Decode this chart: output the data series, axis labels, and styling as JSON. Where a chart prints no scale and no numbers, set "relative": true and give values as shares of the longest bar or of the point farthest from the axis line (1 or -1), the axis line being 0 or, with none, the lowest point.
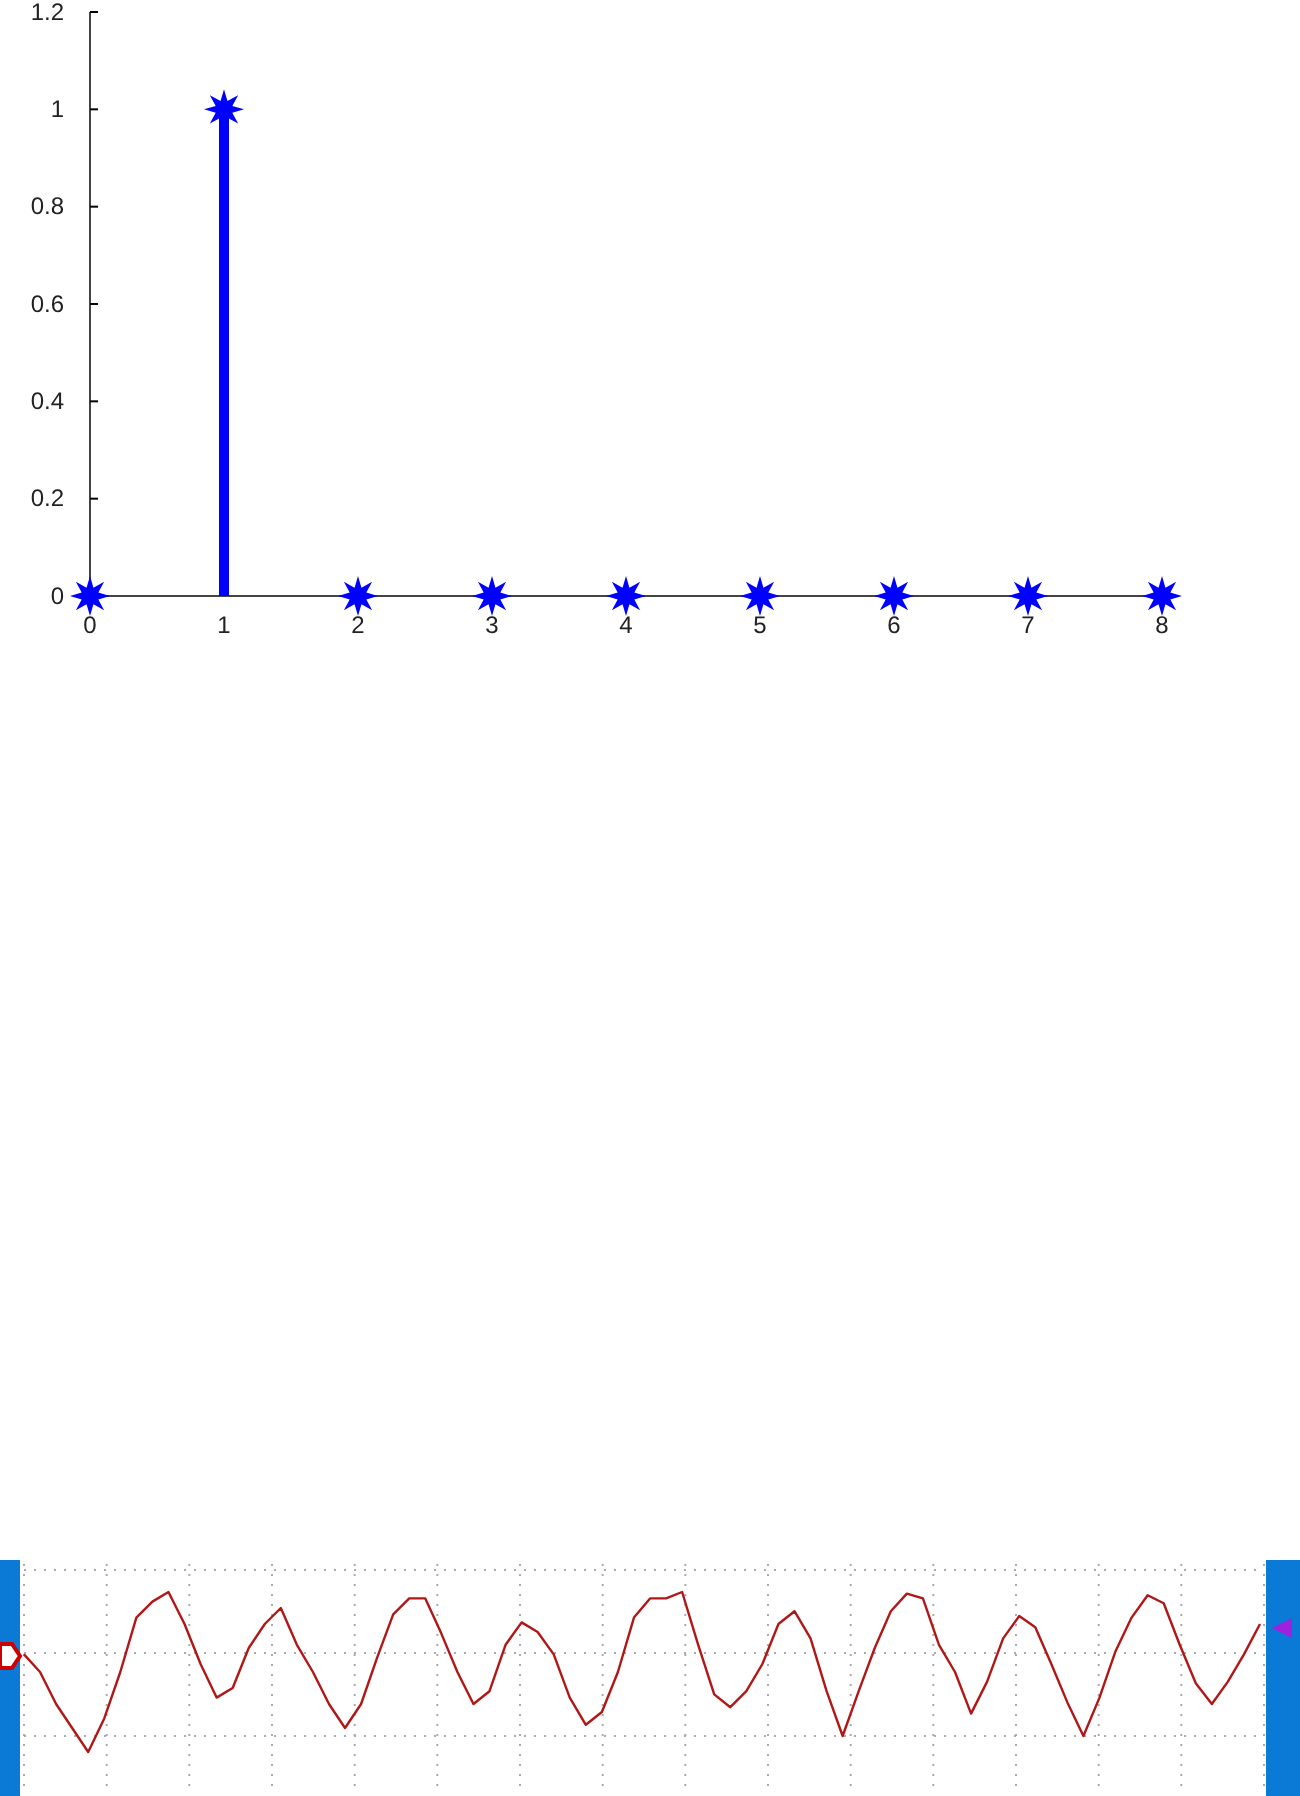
{
  "chart_data": [
    {
      "type": "lollipop",
      "x": [
        0,
        1,
        2,
        3,
        4,
        5,
        6,
        7,
        8
      ],
      "values": [
        0,
        1,
        0,
        0,
        0,
        0,
        0,
        0,
        0
      ],
      "color": "#0000ff",
      "marker": "star",
      "xlim": [
        0,
        8
      ],
      "xticks": [
        0,
        1,
        2,
        3,
        4,
        5,
        6,
        7,
        8
      ],
      "ylim": [
        0,
        1.2
      ],
      "yticks": [
        0,
        0.2,
        0.4,
        0.6,
        0.8,
        1,
        1.2
      ]
    },
    {
      "type": "line",
      "relative": true,
      "grid": true,
      "color": "#b01818",
      "categories": [
        null,
        null,
        null,
        null,
        null,
        null,
        null,
        null,
        null,
        null,
        null,
        null,
        null,
        null,
        null,
        null,
        null,
        null,
        null,
        null,
        null,
        null,
        null,
        null,
        null,
        null,
        null,
        null,
        null,
        null,
        null,
        null,
        null,
        null,
        null,
        null,
        null,
        null,
        null,
        null,
        null,
        null,
        null,
        null,
        null,
        null,
        null,
        null,
        null,
        null,
        null,
        null,
        null,
        null,
        null,
        null,
        null,
        null,
        null,
        null,
        null,
        null,
        null,
        null,
        null,
        null,
        null,
        null,
        null,
        null,
        null,
        null,
        null,
        null,
        null,
        null,
        null,
        null
      ],
      "values": [
        0.61,
        0.5,
        0.3,
        0.15,
        0,
        0.21,
        0.5,
        0.84,
        0.94,
        1,
        0.8,
        0.55,
        0.34,
        0.4,
        0.65,
        0.8,
        0.9,
        0.67,
        0.5,
        0.3,
        0.15,
        0.3,
        0.59,
        0.86,
        0.96,
        0.96,
        0.74,
        0.5,
        0.3,
        0.38,
        0.67,
        0.81,
        0.75,
        0.61,
        0.34,
        0.17,
        0.25,
        0.5,
        0.84,
        0.96,
        0.96,
        1,
        0.67,
        0.36,
        0.28,
        0.38,
        0.55,
        0.8,
        0.88,
        0.71,
        0.38,
        0.1,
        0.38,
        0.65,
        0.88,
        0.99,
        0.96,
        0.67,
        0.5,
        0.24,
        0.44,
        0.71,
        0.85,
        0.78,
        0.55,
        0.31,
        0.1,
        0.34,
        0.63,
        0.84,
        0.98,
        0.93,
        0.67,
        0.43,
        0.3,
        0.44,
        0.61,
        0.8
      ]
    }
  ]
}
